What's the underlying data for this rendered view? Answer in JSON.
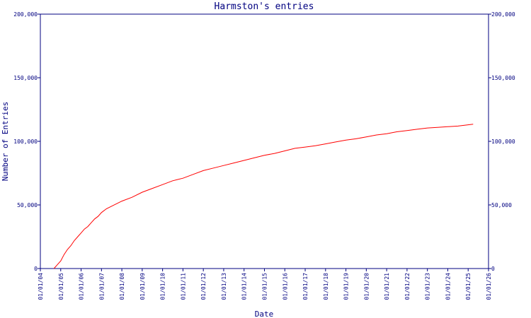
{
  "chart_data": {
    "type": "line",
    "title": "Harmston's entries",
    "xlabel": "Date",
    "ylabel": "Number of Entries",
    "x_tick_labels": [
      "01/01/04",
      "01/01/05",
      "01/01/06",
      "01/01/07",
      "01/01/08",
      "01/01/09",
      "01/01/10",
      "01/01/11",
      "01/01/12",
      "01/01/13",
      "01/01/14",
      "01/01/15",
      "01/01/16",
      "01/01/17",
      "01/01/18",
      "01/01/19",
      "01/01/20",
      "01/01/21",
      "01/01/22",
      "01/01/23",
      "01/01/24",
      "01/01/25",
      "01/01/26"
    ],
    "y_tick_labels": [
      "0",
      "50,000",
      "100,000",
      "150,000",
      "200,000"
    ],
    "y_ticks": [
      0,
      50000,
      100000,
      150000,
      200000
    ],
    "ylim": [
      0,
      200000
    ],
    "xlim": [
      "2004-01-01",
      "2026-01-01"
    ],
    "right_axis": true,
    "grid": false,
    "colors": {
      "axis": "#000080",
      "line": "#ff0000"
    },
    "series": [
      {
        "x": [
          "2004-09-01",
          "2004-11-01",
          "2005-01-01",
          "2005-03-01",
          "2005-05-01",
          "2005-07-01",
          "2005-09-01",
          "2005-11-01",
          "2006-01-01",
          "2006-03-01",
          "2006-05-01",
          "2006-07-01",
          "2006-09-01",
          "2006-11-01",
          "2007-01-01",
          "2007-04-01",
          "2007-07-01",
          "2008-01-01",
          "2008-07-01",
          "2009-01-01",
          "2009-07-01",
          "2010-01-01",
          "2010-07-01",
          "2011-01-01",
          "2011-07-01",
          "2012-01-01",
          "2012-07-01",
          "2013-01-01",
          "2013-07-01",
          "2014-01-01",
          "2014-07-01",
          "2015-01-01",
          "2015-07-01",
          "2016-01-01",
          "2016-07-01",
          "2017-01-01",
          "2017-07-01",
          "2018-01-01",
          "2018-07-01",
          "2019-01-01",
          "2019-07-01",
          "2020-01-01",
          "2020-07-01",
          "2021-01-01",
          "2021-07-01",
          "2022-01-01",
          "2022-07-01",
          "2023-01-01",
          "2023-07-01",
          "2024-01-01",
          "2024-07-01",
          "2025-01-01",
          "2025-04-01"
        ],
        "y": [
          0,
          3000,
          6000,
          11000,
          15000,
          18000,
          22000,
          25000,
          28000,
          31000,
          33000,
          36000,
          39000,
          41000,
          44000,
          47000,
          49000,
          53000,
          56000,
          60000,
          63000,
          66000,
          69000,
          71000,
          74000,
          77000,
          79000,
          81000,
          83000,
          85000,
          87000,
          89000,
          90500,
          92500,
          94500,
          95500,
          96500,
          98000,
          99500,
          101000,
          102000,
          103500,
          105000,
          106000,
          107500,
          108500,
          109500,
          110500,
          111000,
          111500,
          112000,
          113000,
          113500
        ]
      }
    ]
  }
}
